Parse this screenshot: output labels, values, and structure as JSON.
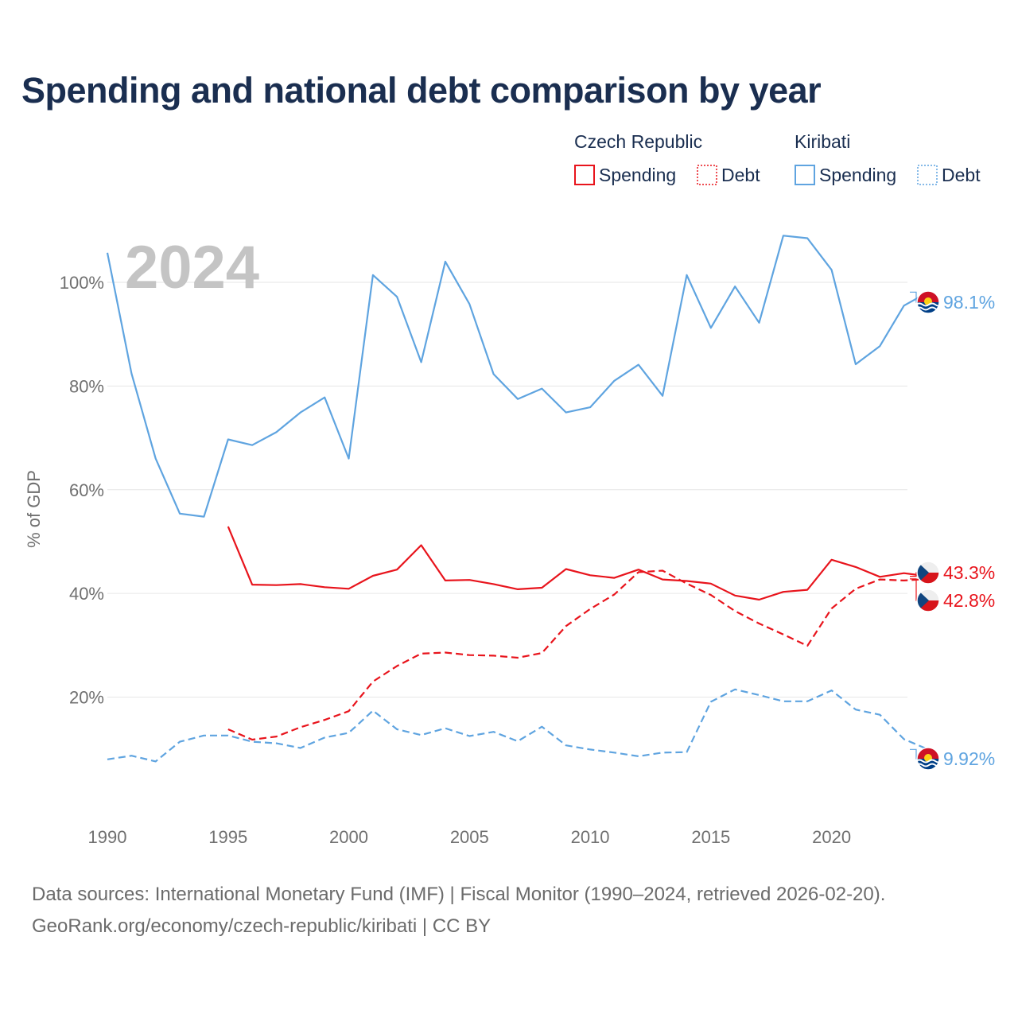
{
  "chart_data": {
    "type": "line",
    "title": "Spending and national debt comparison by year",
    "ylabel": "% of GDP",
    "xlabel": "",
    "year_marker": "2024",
    "xlim": [
      1990,
      2024
    ],
    "ylim": [
      -2,
      112
    ],
    "x_ticks": [
      1990,
      1995,
      2000,
      2005,
      2010,
      2015,
      2020
    ],
    "y_ticks": [
      {
        "value": 20,
        "label": "20%"
      },
      {
        "value": 40,
        "label": "40%"
      },
      {
        "value": 60,
        "label": "60%"
      },
      {
        "value": 80,
        "label": "80%"
      },
      {
        "value": 100,
        "label": "100%"
      }
    ],
    "legend": {
      "groups": [
        {
          "country": "Czech Republic",
          "spending_label": "Spending",
          "debt_label": "Debt"
        },
        {
          "country": "Kiribati",
          "spending_label": "Spending",
          "debt_label": "Debt"
        }
      ]
    },
    "series": [
      {
        "name": "Kiribati Spending",
        "country": "Kiribati",
        "metric": "Spending",
        "color": "#5fa4e0",
        "dashed": false,
        "end_label": "98.1%",
        "x": [
          1990,
          1991,
          1992,
          1993,
          1994,
          1995,
          1996,
          1997,
          1998,
          1999,
          2000,
          2001,
          2002,
          2003,
          2004,
          2005,
          2006,
          2007,
          2008,
          2009,
          2010,
          2011,
          2012,
          2013,
          2014,
          2015,
          2016,
          2017,
          2018,
          2019,
          2020,
          2021,
          2022,
          2023,
          2024
        ],
        "values": [
          105.7,
          82.4,
          66.0,
          55.4,
          54.8,
          69.7,
          68.6,
          71.1,
          74.9,
          77.8,
          66.0,
          101.4,
          97.2,
          84.6,
          104.0,
          95.8,
          82.3,
          77.5,
          79.5,
          74.9,
          75.9,
          81.0,
          84.1,
          78.1,
          101.4,
          91.2,
          99.2,
          92.2,
          109.0,
          108.5,
          102.4,
          84.2,
          87.7,
          95.5,
          98.1
        ]
      },
      {
        "name": "Czech Republic Spending",
        "country": "Czech Republic",
        "metric": "Spending",
        "color": "#e8141c",
        "dashed": false,
        "end_label": "43.3%",
        "x": [
          1995,
          1996,
          1997,
          1998,
          1999,
          2000,
          2001,
          2002,
          2003,
          2004,
          2005,
          2006,
          2007,
          2008,
          2009,
          2010,
          2011,
          2012,
          2013,
          2014,
          2015,
          2016,
          2017,
          2018,
          2019,
          2020,
          2021,
          2022,
          2023,
          2024
        ],
        "values": [
          52.9,
          41.7,
          41.6,
          41.8,
          41.2,
          40.9,
          43.4,
          44.6,
          49.3,
          42.5,
          42.6,
          41.8,
          40.8,
          41.1,
          44.7,
          43.5,
          43.0,
          44.6,
          42.7,
          42.4,
          41.9,
          39.6,
          38.8,
          40.3,
          40.7,
          46.5,
          45.1,
          43.2,
          43.9,
          43.3
        ]
      },
      {
        "name": "Czech Republic Debt",
        "country": "Czech Republic",
        "metric": "Debt",
        "color": "#e8141c",
        "dashed": true,
        "end_label": "42.8%",
        "x": [
          1995,
          1996,
          1997,
          1998,
          1999,
          2000,
          2001,
          2002,
          2003,
          2004,
          2005,
          2006,
          2007,
          2008,
          2009,
          2010,
          2011,
          2012,
          2013,
          2014,
          2015,
          2016,
          2017,
          2018,
          2019,
          2020,
          2021,
          2022,
          2023,
          2024
        ],
        "values": [
          13.8,
          11.8,
          12.4,
          14.2,
          15.6,
          17.3,
          23.0,
          26.0,
          28.4,
          28.6,
          28.1,
          28.0,
          27.6,
          28.5,
          33.7,
          37.0,
          39.8,
          44.1,
          44.4,
          41.9,
          39.7,
          36.6,
          34.2,
          32.1,
          29.9,
          37.1,
          40.9,
          42.7,
          42.5,
          42.8
        ]
      },
      {
        "name": "Kiribati Debt",
        "country": "Kiribati",
        "metric": "Debt",
        "color": "#5fa4e0",
        "dashed": true,
        "end_label": "9.92%",
        "x": [
          1990,
          1991,
          1992,
          1993,
          1994,
          1995,
          1996,
          1997,
          1998,
          1999,
          2000,
          2001,
          2002,
          2003,
          2004,
          2005,
          2006,
          2007,
          2008,
          2009,
          2010,
          2011,
          2012,
          2013,
          2014,
          2015,
          2016,
          2017,
          2018,
          2019,
          2020,
          2021,
          2022,
          2023,
          2024
        ],
        "values": [
          8.0,
          8.7,
          7.6,
          11.4,
          12.6,
          12.6,
          11.4,
          11.1,
          10.2,
          12.2,
          13.1,
          17.4,
          13.8,
          12.7,
          14.0,
          12.5,
          13.3,
          11.5,
          14.3,
          10.7,
          9.9,
          9.3,
          8.6,
          9.3,
          9.4,
          19.1,
          21.5,
          20.4,
          19.2,
          19.2,
          21.3,
          17.6,
          16.6,
          11.9,
          9.92
        ]
      }
    ]
  },
  "source_line": "Data sources: International Monetary Fund (IMF) | Fiscal Monitor (1990–2024, retrieved 2026-02-20).",
  "credit_line": "GeoRank.org/economy/czech-republic/kiribati | CC BY"
}
